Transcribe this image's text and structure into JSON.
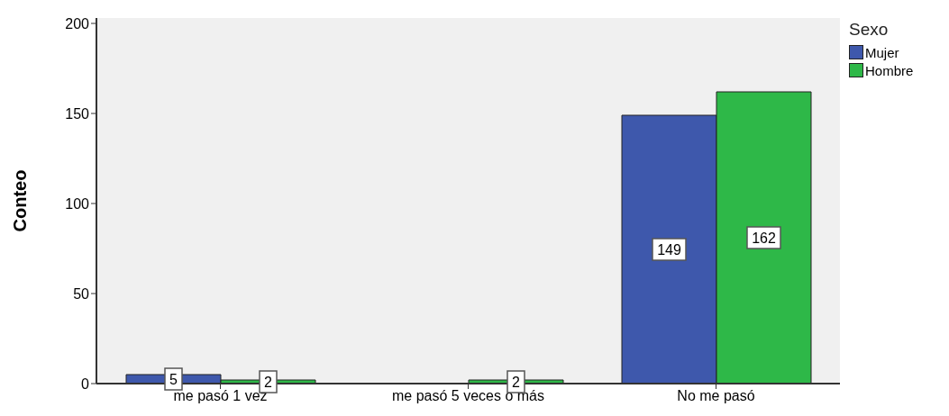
{
  "chart_data": {
    "type": "bar",
    "ylabel": "Conteo",
    "legend_title": "Sexo",
    "categories": [
      "me pasó 1 vez",
      "me pasó 5 veces o más",
      "No me pasó"
    ],
    "series": [
      {
        "name": "Mujer",
        "color": "#3e58ac",
        "values": [
          5,
          null,
          149
        ]
      },
      {
        "name": "Hombre",
        "color": "#2eb848",
        "values": [
          2,
          2,
          162
        ]
      }
    ],
    "ylim": [
      0,
      203
    ],
    "yticks": [
      0,
      50,
      100,
      150,
      200
    ],
    "grid": false,
    "legend": "top right",
    "data_labels": true
  }
}
